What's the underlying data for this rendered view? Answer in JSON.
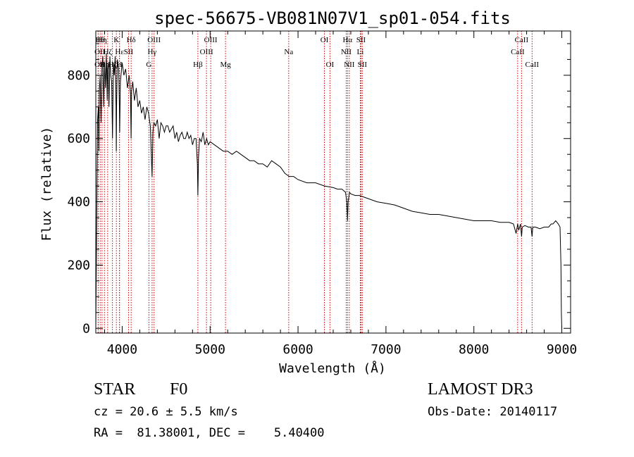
{
  "chart_data": {
    "type": "line",
    "title": "spec-56675-VB081N07V1_sp01-054.fits",
    "xlabel": "Wavelength (Å)",
    "ylabel": "Flux (relative)",
    "xlim": [
      3700,
      9100
    ],
    "ylim": [
      -15,
      940
    ],
    "xticks": [
      4000,
      5000,
      6000,
      7000,
      8000,
      9000
    ],
    "yticks": [
      0,
      200,
      400,
      600,
      800
    ],
    "xtick_labels": [
      "4000",
      "5000",
      "6000",
      "7000",
      "8000",
      "9000"
    ],
    "ytick_labels": [
      "0",
      "200",
      "400",
      "600",
      "800"
    ],
    "series": [
      {
        "name": "flux",
        "x": [
          3700,
          3710,
          3720,
          3730,
          3735,
          3740,
          3750,
          3760,
          3770,
          3780,
          3790,
          3800,
          3810,
          3820,
          3830,
          3835,
          3840,
          3850,
          3860,
          3870,
          3880,
          3890,
          3900,
          3910,
          3920,
          3930,
          3933,
          3936,
          3945,
          3960,
          3968,
          3972,
          3980,
          4000,
          4020,
          4040,
          4060,
          4080,
          4095,
          4101,
          4107,
          4120,
          4140,
          4160,
          4180,
          4200,
          4220,
          4240,
          4260,
          4280,
          4300,
          4320,
          4330,
          4340,
          4350,
          4360,
          4380,
          4400,
          4420,
          4440,
          4460,
          4480,
          4500,
          4520,
          4540,
          4560,
          4580,
          4600,
          4620,
          4640,
          4660,
          4680,
          4700,
          4720,
          4740,
          4760,
          4780,
          4800,
          4820,
          4840,
          4855,
          4861,
          4868,
          4880,
          4900,
          4920,
          4940,
          4960,
          4980,
          5000,
          5050,
          5100,
          5150,
          5200,
          5250,
          5300,
          5350,
          5400,
          5450,
          5500,
          5550,
          5600,
          5650,
          5700,
          5750,
          5800,
          5850,
          5900,
          5950,
          6000,
          6100,
          6200,
          6300,
          6400,
          6450,
          6500,
          6540,
          6555,
          6563,
          6570,
          6585,
          6600,
          6650,
          6700,
          6800,
          6900,
          7000,
          7100,
          7200,
          7300,
          7400,
          7500,
          7600,
          7700,
          7800,
          7900,
          8000,
          8100,
          8200,
          8300,
          8400,
          8450,
          8480,
          8498,
          8510,
          8530,
          8542,
          8550,
          8580,
          8620,
          8650,
          8662,
          8670,
          8700,
          8750,
          8800,
          8850,
          8880,
          8900,
          8930,
          8960,
          8980,
          8990,
          8995,
          9000
        ],
        "y": [
          0,
          320,
          660,
          700,
          560,
          750,
          800,
          650,
          820,
          860,
          700,
          840,
          760,
          870,
          720,
          820,
          840,
          700,
          860,
          800,
          780,
          600,
          840,
          800,
          860,
          700,
          560,
          700,
          850,
          820,
          700,
          620,
          780,
          840,
          800,
          820,
          760,
          800,
          740,
          600,
          750,
          780,
          720,
          760,
          700,
          720,
          680,
          700,
          660,
          700,
          680,
          640,
          560,
          480,
          620,
          650,
          640,
          660,
          600,
          650,
          640,
          620,
          640,
          640,
          620,
          630,
          640,
          600,
          620,
          590,
          610,
          620,
          600,
          600,
          620,
          600,
          610,
          580,
          600,
          600,
          520,
          420,
          540,
          600,
          590,
          620,
          580,
          600,
          580,
          590,
          580,
          570,
          560,
          560,
          550,
          560,
          550,
          540,
          530,
          530,
          520,
          520,
          510,
          530,
          520,
          510,
          490,
          480,
          480,
          470,
          460,
          460,
          450,
          445,
          440,
          440,
          430,
          400,
          340,
          400,
          430,
          425,
          420,
          420,
          410,
          400,
          395,
          390,
          380,
          370,
          365,
          360,
          360,
          355,
          350,
          345,
          340,
          340,
          340,
          335,
          335,
          330,
          300,
          330,
          310,
          330,
          290,
          320,
          325,
          320,
          320,
          290,
          320,
          320,
          315,
          320,
          320,
          330,
          330,
          340,
          330,
          320,
          200,
          50,
          0
        ]
      }
    ],
    "lines": [
      {
        "wavelength": 3727,
        "label": "OII",
        "row": 1,
        "anchor": "end"
      },
      {
        "wavelength": 3727,
        "label": "OII",
        "row": 2,
        "anchor": "end"
      },
      {
        "wavelength": 3750,
        "label": "Hθ",
        "row": 0,
        "anchor": "middle"
      },
      {
        "wavelength": 3771,
        "label": "Hη",
        "row": 0,
        "anchor": "middle"
      },
      {
        "wavelength": 3798,
        "label": "Hη",
        "row": 2,
        "anchor": "middle"
      },
      {
        "wavelength": 3835,
        "label": "Hζ",
        "row": 1,
        "anchor": "middle"
      },
      {
        "wavelength": 3889,
        "label": "Hζ",
        "row": 2,
        "anchor": "middle"
      },
      {
        "wavelength": 3934,
        "label": "K",
        "row": 0,
        "anchor": "middle"
      },
      {
        "wavelength": 3969,
        "label": "H",
        "row": 2,
        "anchor": "middle"
      },
      {
        "wavelength": 3970,
        "label": "Hε",
        "row": 1,
        "anchor": "middle"
      },
      {
        "wavelength": 4072,
        "label": "SII",
        "row": 1,
        "anchor": "middle"
      },
      {
        "wavelength": 4102,
        "label": "Hδ",
        "row": 0,
        "anchor": "middle"
      },
      {
        "wavelength": 4304,
        "label": "G",
        "row": 2,
        "anchor": "middle"
      },
      {
        "wavelength": 4340,
        "label": "Hγ",
        "row": 1,
        "anchor": "middle"
      },
      {
        "wavelength": 4363,
        "label": "OIII",
        "row": 0,
        "anchor": "middle"
      },
      {
        "wavelength": 4861,
        "label": "Hβ",
        "row": 2,
        "anchor": "middle"
      },
      {
        "wavelength": 4959,
        "label": "OIII",
        "row": 1,
        "anchor": "middle"
      },
      {
        "wavelength": 5007,
        "label": "OIII",
        "row": 0,
        "anchor": "middle"
      },
      {
        "wavelength": 5175,
        "label": "Mg",
        "row": 2,
        "anchor": "middle"
      },
      {
        "wavelength": 5894,
        "label": "Na",
        "row": 1,
        "anchor": "middle"
      },
      {
        "wavelength": 6300,
        "label": "OI",
        "row": 0,
        "anchor": "middle"
      },
      {
        "wavelength": 6363,
        "label": "OI",
        "row": 2,
        "anchor": "middle"
      },
      {
        "wavelength": 6548,
        "label": "NII",
        "row": 1,
        "anchor": "middle"
      },
      {
        "wavelength": 6563,
        "label": "Hα",
        "row": 0,
        "anchor": "middle"
      },
      {
        "wavelength": 6583,
        "label": "NII",
        "row": 2,
        "anchor": "middle"
      },
      {
        "wavelength": 6708,
        "label": "Li",
        "row": 1,
        "anchor": "middle"
      },
      {
        "wavelength": 6716,
        "label": "SII",
        "row": 0,
        "anchor": "middle"
      },
      {
        "wavelength": 6731,
        "label": "SII",
        "row": 2,
        "anchor": "middle"
      },
      {
        "wavelength": 8498,
        "label": "CaII",
        "row": 1,
        "anchor": "middle"
      },
      {
        "wavelength": 8542,
        "label": "CaII",
        "row": 0,
        "anchor": "middle"
      },
      {
        "wavelength": 8662,
        "label": "CaII",
        "row": 2,
        "anchor": "middle"
      }
    ]
  },
  "info": {
    "object_class": "STAR",
    "subclass": "F0",
    "survey": "LAMOST DR3",
    "redshift": "cz = 20.6 ± 5.5 km/s",
    "obs_date": "Obs-Date: 20140117",
    "coords": "RA =  81.38001, DEC =    5.40400"
  },
  "colors": {
    "line_marker": "#cc0000",
    "spectrum": "#000000",
    "axes": "#000000"
  }
}
